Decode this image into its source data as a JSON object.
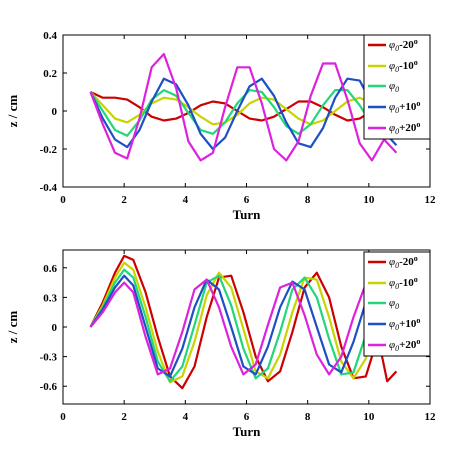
{
  "chart_data": [
    {
      "type": "line",
      "xlabel": "Turn",
      "ylabel": "z / cm",
      "xlim": [
        0,
        12
      ],
      "ylim": [
        -0.4,
        0.4
      ],
      "xticks": [
        "0",
        "2",
        "4",
        "6",
        "8",
        "10",
        "12"
      ],
      "yticks": [
        "-0.4",
        "-0.2",
        "0",
        "0.2",
        "0.4"
      ],
      "grid": false,
      "legend_position": "top-right",
      "series": [
        {
          "name": "φ0-20°",
          "color": "#cc0000",
          "x": [
            0.9,
            1.3,
            1.7,
            2.1,
            2.5,
            2.9,
            3.3,
            3.7,
            4.1,
            4.5,
            4.9,
            5.3,
            5.7,
            6.1,
            6.5,
            6.9,
            7.3,
            7.7,
            8.1,
            8.5,
            8.9,
            9.3,
            9.7,
            10.1,
            10.5,
            10.9
          ],
          "y": [
            0.1,
            0.07,
            0.07,
            0.06,
            0.02,
            -0.03,
            -0.05,
            -0.04,
            -0.01,
            0.03,
            0.05,
            0.04,
            0.0,
            -0.04,
            -0.05,
            -0.03,
            0.01,
            0.05,
            0.05,
            0.02,
            -0.02,
            -0.05,
            -0.04,
            0.0,
            0.04,
            0.05
          ]
        },
        {
          "name": "φ0-10°",
          "color": "#c8d400",
          "x": [
            0.9,
            1.3,
            1.7,
            2.1,
            2.5,
            2.9,
            3.3,
            3.7,
            4.1,
            4.5,
            4.9,
            5.3,
            5.7,
            6.1,
            6.5,
            6.9,
            7.3,
            7.7,
            8.1,
            8.5,
            8.9,
            9.3,
            9.7,
            10.1,
            10.5,
            10.9
          ],
          "y": [
            0.1,
            0.03,
            -0.04,
            -0.06,
            -0.02,
            0.04,
            0.07,
            0.06,
            0.02,
            -0.03,
            -0.07,
            -0.06,
            -0.02,
            0.04,
            0.07,
            0.06,
            0.01,
            -0.04,
            -0.07,
            -0.05,
            0.0,
            0.05,
            0.07,
            0.04,
            -0.02,
            -0.06
          ]
        },
        {
          "name": "φ0",
          "color": "#22d67a",
          "x": [
            0.9,
            1.3,
            1.7,
            2.1,
            2.5,
            2.9,
            3.3,
            3.7,
            4.1,
            4.5,
            4.9,
            5.3,
            5.7,
            6.1,
            6.5,
            6.9,
            7.3,
            7.7,
            8.1,
            8.5,
            8.9,
            9.3,
            9.7,
            10.1,
            10.5,
            10.9
          ],
          "y": [
            0.1,
            0.0,
            -0.1,
            -0.13,
            -0.05,
            0.06,
            0.11,
            0.08,
            -0.01,
            -0.1,
            -0.12,
            -0.06,
            0.04,
            0.11,
            0.1,
            0.02,
            -0.08,
            -0.12,
            -0.07,
            0.03,
            0.11,
            0.11,
            0.03,
            -0.07,
            -0.12,
            -0.08
          ]
        },
        {
          "name": "φ0+10°",
          "color": "#1f4fc4",
          "x": [
            0.9,
            1.3,
            1.7,
            2.1,
            2.5,
            2.9,
            3.3,
            3.7,
            4.1,
            4.5,
            4.9,
            5.3,
            5.7,
            6.1,
            6.5,
            6.9,
            7.3,
            7.7,
            8.1,
            8.5,
            8.9,
            9.3,
            9.7,
            10.1,
            10.5,
            10.9
          ],
          "y": [
            0.1,
            -0.04,
            -0.15,
            -0.19,
            -0.1,
            0.05,
            0.17,
            0.14,
            0.03,
            -0.12,
            -0.2,
            -0.14,
            0.0,
            0.13,
            0.17,
            0.08,
            -0.06,
            -0.17,
            -0.19,
            -0.09,
            0.07,
            0.17,
            0.16,
            0.04,
            -0.11,
            -0.18
          ]
        },
        {
          "name": "φ0+20°",
          "color": "#dd22dd",
          "x": [
            0.9,
            1.3,
            1.7,
            2.1,
            2.5,
            2.9,
            3.3,
            3.7,
            4.1,
            4.5,
            4.9,
            5.3,
            5.7,
            6.1,
            6.5,
            6.9,
            7.3,
            7.7,
            8.1,
            8.5,
            8.9,
            9.3,
            9.7,
            10.1,
            10.5,
            10.9
          ],
          "y": [
            0.1,
            -0.07,
            -0.22,
            -0.25,
            -0.04,
            0.23,
            0.3,
            0.12,
            -0.16,
            -0.26,
            -0.22,
            0.02,
            0.23,
            0.23,
            0.04,
            -0.2,
            -0.26,
            -0.16,
            0.08,
            0.25,
            0.25,
            0.06,
            -0.17,
            -0.26,
            -0.15,
            -0.22
          ]
        }
      ]
    },
    {
      "type": "line",
      "xlabel": "Turn",
      "ylabel": "z / cm",
      "xlim": [
        0,
        12
      ],
      "ylim": [
        -0.78,
        0.78
      ],
      "xticks": [
        "0",
        "2",
        "4",
        "6",
        "8",
        "10",
        "12"
      ],
      "yticks": [
        "-0.6",
        "-0.3",
        "0",
        "0.3",
        "0.6"
      ],
      "grid": false,
      "legend_position": "top-right",
      "series": [
        {
          "name": "φ0-20°",
          "color": "#cc0000",
          "x": [
            0.9,
            1.3,
            1.7,
            2.0,
            2.3,
            2.7,
            3.1,
            3.5,
            3.9,
            4.3,
            4.7,
            5.1,
            5.5,
            5.9,
            6.3,
            6.7,
            7.1,
            7.5,
            7.9,
            8.3,
            8.7,
            9.1,
            9.5,
            9.9,
            10.3,
            10.6,
            10.9
          ],
          "y": [
            0.0,
            0.25,
            0.55,
            0.72,
            0.68,
            0.35,
            -0.1,
            -0.5,
            -0.62,
            -0.4,
            0.1,
            0.5,
            0.52,
            0.15,
            -0.3,
            -0.55,
            -0.45,
            -0.05,
            0.4,
            0.55,
            0.3,
            -0.2,
            -0.52,
            -0.5,
            -0.1,
            -0.55,
            -0.45
          ]
        },
        {
          "name": "φ0-10°",
          "color": "#c8d400",
          "x": [
            0.9,
            1.3,
            1.7,
            2.0,
            2.3,
            2.7,
            3.1,
            3.5,
            3.9,
            4.3,
            4.7,
            5.1,
            5.5,
            5.9,
            6.3,
            6.7,
            7.1,
            7.5,
            7.9,
            8.3,
            8.7,
            9.1,
            9.5,
            9.9,
            10.3,
            10.6,
            10.9
          ],
          "y": [
            0.0,
            0.22,
            0.5,
            0.65,
            0.58,
            0.2,
            -0.25,
            -0.56,
            -0.5,
            -0.15,
            0.32,
            0.55,
            0.4,
            -0.02,
            -0.45,
            -0.52,
            -0.28,
            0.15,
            0.5,
            0.48,
            0.1,
            -0.35,
            -0.52,
            -0.32,
            0.15,
            0.4,
            0.45
          ]
        },
        {
          "name": "φ0",
          "color": "#22d67a",
          "x": [
            0.9,
            1.3,
            1.7,
            2.0,
            2.3,
            2.7,
            3.1,
            3.5,
            3.9,
            4.3,
            4.7,
            5.1,
            5.5,
            5.9,
            6.3,
            6.7,
            7.1,
            7.5,
            7.9,
            8.3,
            8.7,
            9.1,
            9.5,
            9.9,
            10.3,
            10.6,
            10.9
          ],
          "y": [
            0.0,
            0.2,
            0.45,
            0.58,
            0.5,
            0.1,
            -0.35,
            -0.55,
            -0.4,
            0.02,
            0.45,
            0.52,
            0.22,
            -0.22,
            -0.52,
            -0.42,
            -0.05,
            0.38,
            0.5,
            0.3,
            -0.12,
            -0.48,
            -0.46,
            -0.08,
            0.35,
            0.48,
            0.4
          ]
        },
        {
          "name": "φ0+10°",
          "color": "#1f4fc4",
          "x": [
            0.9,
            1.3,
            1.7,
            2.0,
            2.3,
            2.7,
            3.1,
            3.5,
            3.9,
            4.3,
            4.7,
            5.1,
            5.5,
            5.9,
            6.3,
            6.7,
            7.1,
            7.5,
            7.9,
            8.3,
            8.7,
            9.1,
            9.5,
            9.9,
            10.3,
            10.6,
            10.9
          ],
          "y": [
            0.0,
            0.18,
            0.4,
            0.52,
            0.42,
            0.0,
            -0.42,
            -0.5,
            -0.22,
            0.2,
            0.48,
            0.38,
            0.0,
            -0.4,
            -0.48,
            -0.2,
            0.2,
            0.46,
            0.38,
            0.0,
            -0.38,
            -0.46,
            -0.15,
            0.25,
            0.45,
            0.3,
            0.1
          ]
        },
        {
          "name": "φ0+20°",
          "color": "#dd22dd",
          "x": [
            0.9,
            1.3,
            1.7,
            2.0,
            2.3,
            2.7,
            3.1,
            3.5,
            3.9,
            4.3,
            4.7,
            5.1,
            5.5,
            5.9,
            6.3,
            6.7,
            7.1,
            7.5,
            7.9,
            8.3,
            8.7,
            9.1,
            9.5,
            9.9,
            10.3,
            10.6,
            10.9
          ],
          "y": [
            0.0,
            0.15,
            0.35,
            0.45,
            0.35,
            -0.1,
            -0.48,
            -0.42,
            -0.05,
            0.38,
            0.48,
            0.2,
            -0.2,
            -0.48,
            -0.38,
            0.02,
            0.4,
            0.45,
            0.12,
            -0.28,
            -0.48,
            -0.3,
            0.1,
            0.44,
            0.4,
            0.0,
            -0.3
          ]
        }
      ]
    }
  ]
}
